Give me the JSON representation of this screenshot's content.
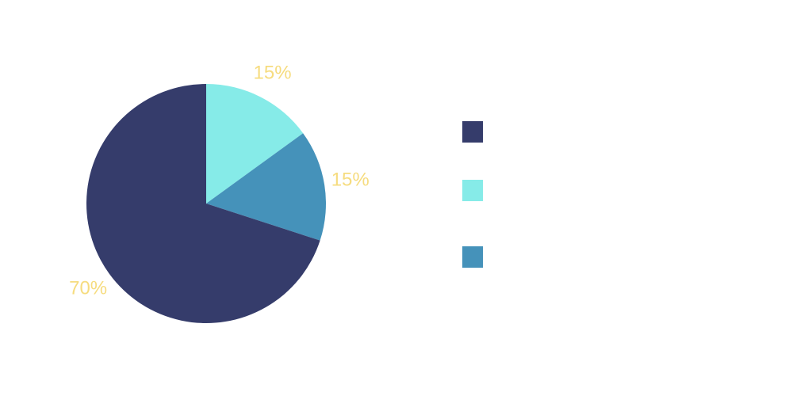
{
  "colors": {
    "background": "#ffffff",
    "label": "#f6dc7f"
  },
  "chart_data": {
    "type": "pie",
    "title": "",
    "start_angle_deg": 0,
    "direction": "clockwise",
    "legend_position": "right",
    "legend_labels_visible": false,
    "slices": [
      {
        "value": 15,
        "label": "15%",
        "color": "#86ebe8"
      },
      {
        "value": 15,
        "label": "15%",
        "color": "#4592ba"
      },
      {
        "value": 70,
        "label": "70%",
        "color": "#353c6b"
      }
    ],
    "legend_order": [
      2,
      0,
      1
    ]
  }
}
